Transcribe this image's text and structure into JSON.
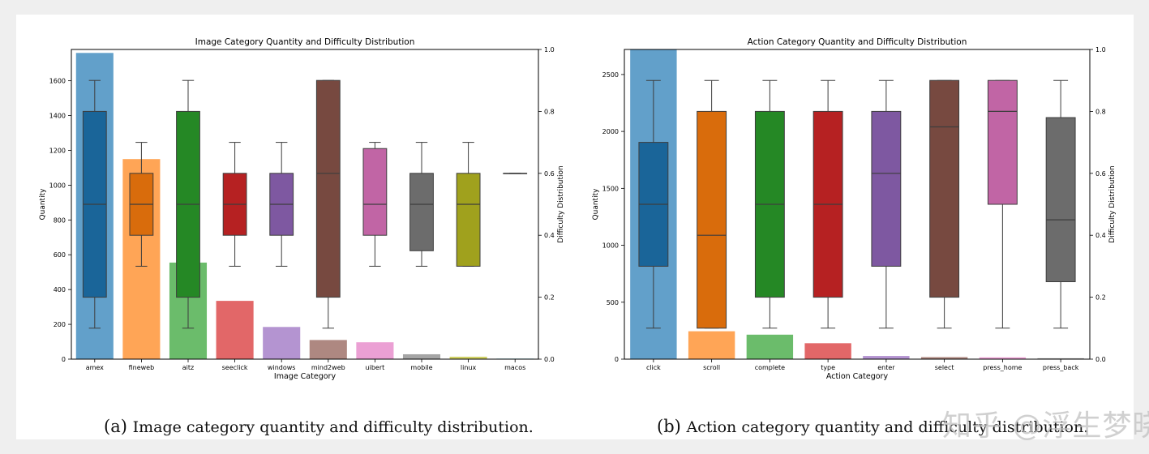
{
  "captions": {
    "a_label": "(a)",
    "a_text": "Image category quantity and difficulty distribution.",
    "b_label": "(b)",
    "b_text": "Action category quantity and difficulty distribution."
  },
  "watermark": "知乎 @浮生梦晓",
  "colors": {
    "palette": [
      "#1f77b4",
      "#ff7f0e",
      "#2ca02c",
      "#d62728",
      "#9467bd",
      "#8c564b",
      "#e377c2",
      "#7f7f7f",
      "#bcbd22",
      "#17becf"
    ]
  },
  "chart_data": [
    {
      "type": "bar",
      "overlay": "boxplot",
      "title": "Image Category Quantity and Difficulty Distribution",
      "xlabel": "Image Category",
      "ylabel": "Quantity",
      "y2label": "Difficulty Distribution",
      "categories": [
        "amex",
        "fineweb",
        "aitz",
        "seeclick",
        "windows",
        "mind2web",
        "uibert",
        "mobile",
        "linux",
        "macos"
      ],
      "values": [
        1760,
        1150,
        555,
        335,
        185,
        110,
        97,
        28,
        14,
        3
      ],
      "ylim": [
        0,
        1780
      ],
      "yticks": [
        0,
        200,
        400,
        600,
        800,
        1000,
        1200,
        1400,
        1600
      ],
      "y2lim": [
        0,
        1
      ],
      "y2ticks": [
        "0.0",
        "0.2",
        "0.4",
        "0.6",
        "0.8",
        "1.0"
      ],
      "boxes": [
        {
          "wlo": 0.1,
          "q1": 0.2,
          "med": 0.5,
          "q3": 0.8,
          "whi": 0.9
        },
        {
          "wlo": 0.3,
          "q1": 0.4,
          "med": 0.5,
          "q3": 0.6,
          "whi": 0.7
        },
        {
          "wlo": 0.1,
          "q1": 0.2,
          "med": 0.5,
          "q3": 0.8,
          "whi": 0.9
        },
        {
          "wlo": 0.3,
          "q1": 0.4,
          "med": 0.5,
          "q3": 0.6,
          "whi": 0.7
        },
        {
          "wlo": 0.3,
          "q1": 0.4,
          "med": 0.5,
          "q3": 0.6,
          "whi": 0.7
        },
        {
          "wlo": 0.1,
          "q1": 0.2,
          "med": 0.6,
          "q3": 0.9,
          "whi": 0.9
        },
        {
          "wlo": 0.3,
          "q1": 0.4,
          "med": 0.5,
          "q3": 0.68,
          "whi": 0.7
        },
        {
          "wlo": 0.3,
          "q1": 0.35,
          "med": 0.5,
          "q3": 0.6,
          "whi": 0.7
        },
        {
          "wlo": 0.3,
          "q1": 0.3,
          "med": 0.5,
          "q3": 0.6,
          "whi": 0.7
        },
        {
          "wlo": 0.6,
          "q1": 0.6,
          "med": 0.6,
          "q3": 0.6,
          "whi": 0.6
        }
      ]
    },
    {
      "type": "bar",
      "overlay": "boxplot",
      "title": "Action Category Quantity and Difficulty Distribution",
      "xlabel": "Action Category",
      "ylabel": "Quantity",
      "y2label": "Difficulty Distribution",
      "categories": [
        "click",
        "scroll",
        "complete",
        "type",
        "enter",
        "select",
        "press_home",
        "press_back"
      ],
      "values": [
        2720,
        245,
        215,
        140,
        28,
        18,
        16,
        8
      ],
      "ylim": [
        0,
        2720
      ],
      "yticks": [
        0,
        500,
        1000,
        1500,
        2000,
        2500
      ],
      "y2lim": [
        0,
        1
      ],
      "y2ticks": [
        "0.0",
        "0.2",
        "0.4",
        "0.6",
        "0.8",
        "1.0"
      ],
      "boxes": [
        {
          "wlo": 0.1,
          "q1": 0.3,
          "med": 0.5,
          "q3": 0.7,
          "whi": 0.9
        },
        {
          "wlo": 0.1,
          "q1": 0.1,
          "med": 0.4,
          "q3": 0.8,
          "whi": 0.9
        },
        {
          "wlo": 0.1,
          "q1": 0.2,
          "med": 0.5,
          "q3": 0.8,
          "whi": 0.9
        },
        {
          "wlo": 0.1,
          "q1": 0.2,
          "med": 0.5,
          "q3": 0.8,
          "whi": 0.9
        },
        {
          "wlo": 0.1,
          "q1": 0.3,
          "med": 0.6,
          "q3": 0.8,
          "whi": 0.9
        },
        {
          "wlo": 0.1,
          "q1": 0.2,
          "med": 0.75,
          "q3": 0.9,
          "whi": 0.9
        },
        {
          "wlo": 0.1,
          "q1": 0.5,
          "med": 0.8,
          "q3": 0.9,
          "whi": 0.9
        },
        {
          "wlo": 0.1,
          "q1": 0.25,
          "med": 0.45,
          "q3": 0.78,
          "whi": 0.9
        }
      ]
    }
  ]
}
